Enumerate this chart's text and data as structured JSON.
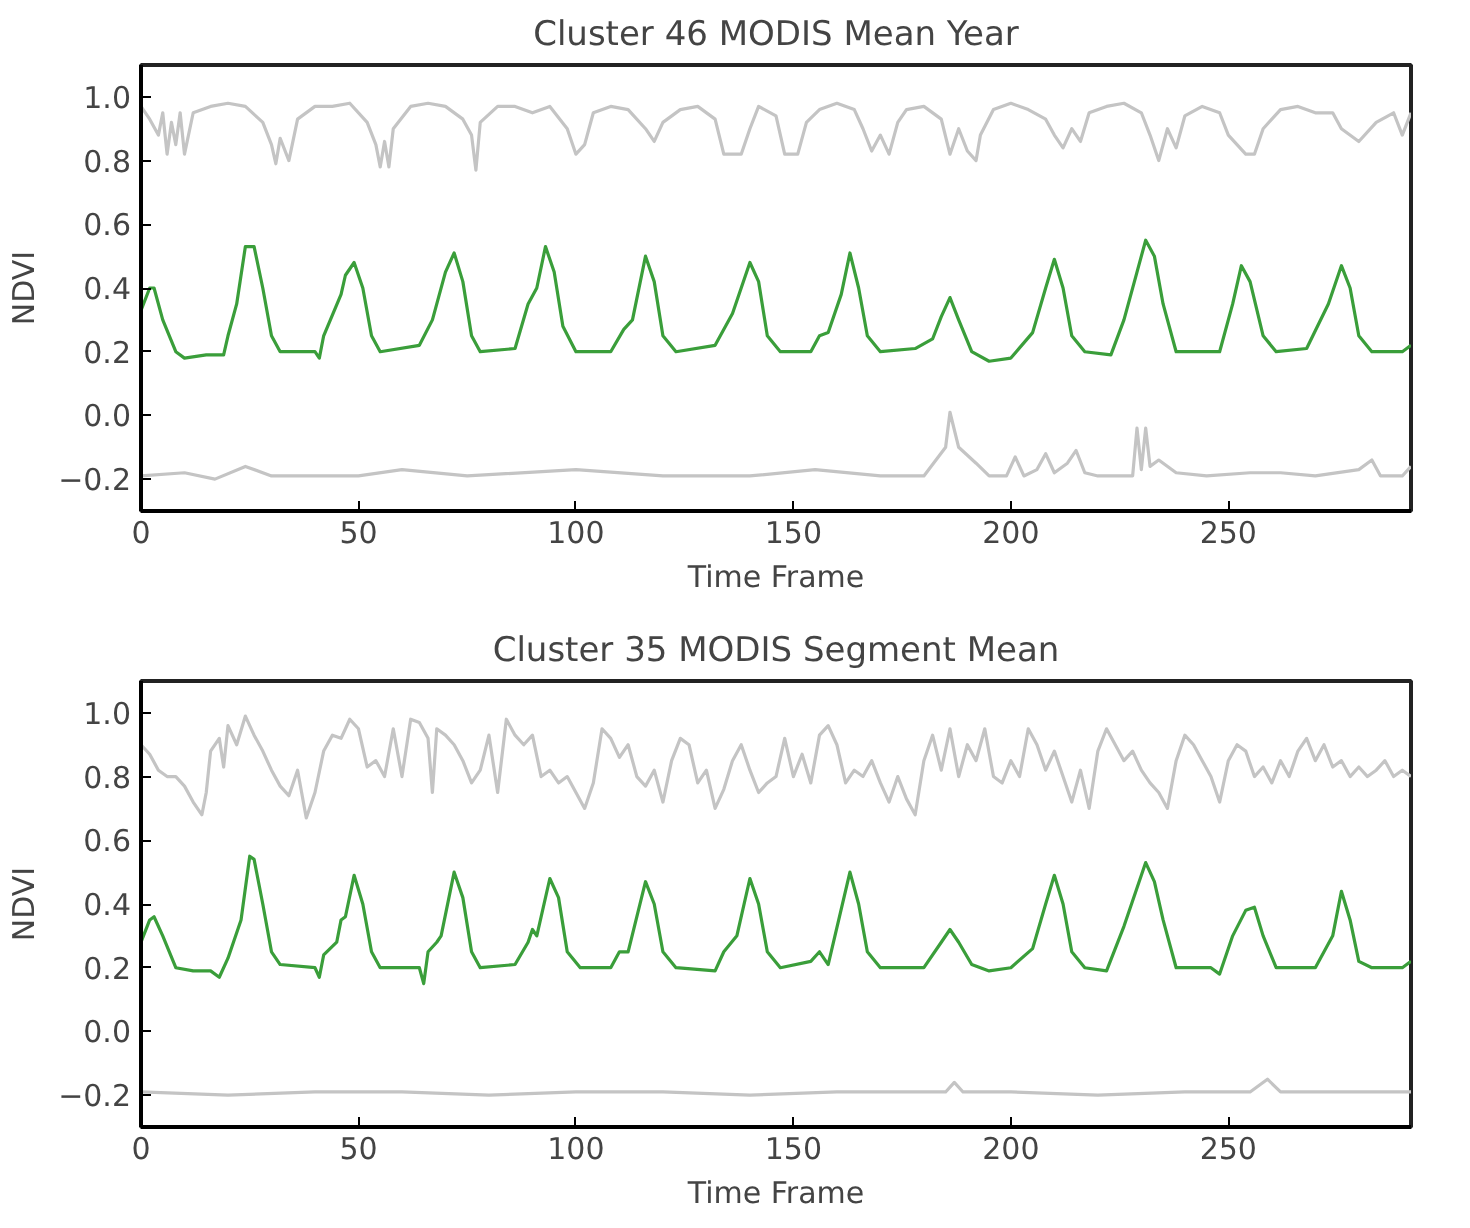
{
  "chart_data": [
    {
      "type": "line",
      "title": "Cluster 46 MODIS Mean Year",
      "xlabel": "Time Frame",
      "ylabel": "NDVI",
      "xlim": [
        0,
        292
      ],
      "ylim": [
        -0.3,
        1.1
      ],
      "xticks": [
        0,
        50,
        100,
        150,
        200,
        250
      ],
      "yticks": [
        {
          "value": -0.2,
          "label": "−0.2"
        },
        {
          "value": 0,
          "label": "0.0"
        },
        0.2,
        0.4,
        0.6,
        0.8,
        {
          "value": 1,
          "label": "1.0"
        }
      ],
      "grid": false,
      "line_style": "solid",
      "series": [
        {
          "color": "#c4c4c4",
          "x": [
            0,
            2,
            4,
            5,
            6,
            7,
            8,
            9,
            10,
            12,
            16,
            20,
            24,
            28,
            30,
            31,
            32,
            34,
            36,
            40,
            44,
            48,
            52,
            54,
            55,
            56,
            57,
            58,
            62,
            66,
            70,
            74,
            76,
            77,
            78,
            82,
            86,
            90,
            94,
            98,
            100,
            102,
            104,
            108,
            112,
            116,
            118,
            120,
            124,
            128,
            132,
            134,
            138,
            140,
            142,
            146,
            148,
            151,
            153,
            156,
            160,
            164,
            166,
            168,
            170,
            172,
            174,
            176,
            180,
            184,
            186,
            188,
            190,
            192,
            193,
            196,
            200,
            204,
            208,
            210,
            212,
            214,
            216,
            218,
            222,
            226,
            230,
            232,
            234,
            236,
            238,
            240,
            244,
            248,
            250,
            252,
            254,
            256,
            258,
            262,
            266,
            270,
            274,
            276,
            280,
            284,
            288,
            290,
            292
          ],
          "values": [
            0.97,
            0.93,
            0.88,
            0.95,
            0.82,
            0.92,
            0.85,
            0.95,
            0.82,
            0.95,
            0.97,
            0.98,
            0.97,
            0.92,
            0.85,
            0.79,
            0.87,
            0.8,
            0.93,
            0.97,
            0.97,
            0.98,
            0.92,
            0.85,
            0.78,
            0.86,
            0.78,
            0.9,
            0.97,
            0.98,
            0.97,
            0.93,
            0.88,
            0.77,
            0.92,
            0.97,
            0.97,
            0.95,
            0.97,
            0.9,
            0.82,
            0.85,
            0.95,
            0.97,
            0.96,
            0.9,
            0.86,
            0.92,
            0.96,
            0.97,
            0.93,
            0.82,
            0.82,
            0.9,
            0.97,
            0.94,
            0.82,
            0.82,
            0.92,
            0.96,
            0.98,
            0.96,
            0.9,
            0.83,
            0.88,
            0.82,
            0.92,
            0.96,
            0.97,
            0.93,
            0.82,
            0.9,
            0.83,
            0.8,
            0.88,
            0.96,
            0.98,
            0.96,
            0.93,
            0.88,
            0.84,
            0.9,
            0.86,
            0.95,
            0.97,
            0.98,
            0.95,
            0.88,
            0.8,
            0.9,
            0.84,
            0.94,
            0.97,
            0.95,
            0.88,
            0.85,
            0.82,
            0.82,
            0.9,
            0.96,
            0.97,
            0.95,
            0.95,
            0.9,
            0.86,
            0.92,
            0.95,
            0.88,
            0.95
          ]
        },
        {
          "color": "#3a9e3a",
          "x": [
            0,
            2,
            3,
            5,
            8,
            10,
            15,
            19,
            20,
            22,
            24,
            26,
            28,
            30,
            32,
            40,
            41,
            42,
            46,
            47,
            49,
            51,
            53,
            55,
            64,
            67,
            70,
            72,
            74,
            76,
            78,
            86,
            89,
            91,
            93,
            95,
            97,
            100,
            108,
            111,
            113,
            116,
            118,
            120,
            123,
            132,
            136,
            140,
            142,
            144,
            147,
            154,
            156,
            158,
            161,
            163,
            165,
            167,
            170,
            178,
            182,
            184,
            186,
            188,
            191,
            195,
            200,
            205,
            208,
            210,
            212,
            214,
            217,
            223,
            226,
            229,
            231,
            233,
            235,
            238,
            248,
            251,
            253,
            255,
            258,
            261,
            268,
            273,
            276,
            278,
            280,
            283,
            290,
            292
          ],
          "values": [
            0.33,
            0.4,
            0.4,
            0.3,
            0.2,
            0.18,
            0.19,
            0.19,
            0.25,
            0.35,
            0.53,
            0.53,
            0.4,
            0.25,
            0.2,
            0.2,
            0.18,
            0.25,
            0.38,
            0.44,
            0.48,
            0.4,
            0.25,
            0.2,
            0.22,
            0.3,
            0.45,
            0.51,
            0.42,
            0.25,
            0.2,
            0.21,
            0.35,
            0.4,
            0.53,
            0.45,
            0.28,
            0.2,
            0.2,
            0.27,
            0.3,
            0.5,
            0.42,
            0.25,
            0.2,
            0.22,
            0.32,
            0.48,
            0.42,
            0.25,
            0.2,
            0.2,
            0.25,
            0.26,
            0.38,
            0.51,
            0.4,
            0.25,
            0.2,
            0.21,
            0.24,
            0.31,
            0.37,
            0.3,
            0.2,
            0.17,
            0.18,
            0.26,
            0.4,
            0.49,
            0.4,
            0.25,
            0.2,
            0.19,
            0.3,
            0.45,
            0.55,
            0.5,
            0.35,
            0.2,
            0.2,
            0.35,
            0.47,
            0.42,
            0.25,
            0.2,
            0.21,
            0.35,
            0.47,
            0.4,
            0.25,
            0.2,
            0.2,
            0.22
          ]
        },
        {
          "color": "#c4c4c4",
          "x": [
            0,
            10,
            17,
            24,
            30,
            50,
            60,
            75,
            100,
            120,
            140,
            155,
            170,
            180,
            185,
            186,
            188,
            192,
            195,
            199,
            201,
            203,
            206,
            208,
            210,
            213,
            215,
            217,
            220,
            228,
            229,
            230,
            231,
            232,
            234,
            238,
            245,
            255,
            262,
            270,
            280,
            283,
            285,
            290,
            292
          ],
          "values": [
            -0.19,
            -0.18,
            -0.2,
            -0.16,
            -0.19,
            -0.19,
            -0.17,
            -0.19,
            -0.17,
            -0.19,
            -0.19,
            -0.17,
            -0.19,
            -0.19,
            -0.1,
            0.01,
            -0.1,
            -0.15,
            -0.19,
            -0.19,
            -0.13,
            -0.19,
            -0.17,
            -0.12,
            -0.18,
            -0.15,
            -0.11,
            -0.18,
            -0.19,
            -0.19,
            -0.04,
            -0.17,
            -0.04,
            -0.16,
            -0.14,
            -0.18,
            -0.19,
            -0.18,
            -0.18,
            -0.19,
            -0.17,
            -0.14,
            -0.19,
            -0.19,
            -0.16
          ]
        }
      ]
    },
    {
      "type": "line",
      "title": "Cluster 35 MODIS Segment Mean",
      "xlabel": "Time Frame",
      "ylabel": "NDVI",
      "xlim": [
        0,
        292
      ],
      "ylim": [
        -0.3,
        1.1
      ],
      "xticks": [
        0,
        50,
        100,
        150,
        200,
        250
      ],
      "yticks": [
        {
          "value": -0.2,
          "label": "−0.2"
        },
        {
          "value": 0,
          "label": "0.0"
        },
        0.2,
        0.4,
        0.6,
        0.8,
        {
          "value": 1,
          "label": "1.0"
        }
      ],
      "grid": false,
      "line_style": "solid",
      "series": [
        {
          "color": "#c4c4c4",
          "x": [
            0,
            2,
            4,
            6,
            8,
            10,
            12,
            14,
            15,
            16,
            18,
            19,
            20,
            22,
            24,
            26,
            28,
            30,
            32,
            34,
            36,
            38,
            40,
            42,
            44,
            46,
            48,
            50,
            52,
            54,
            56,
            58,
            60,
            62,
            64,
            66,
            67,
            68,
            70,
            72,
            74,
            76,
            78,
            80,
            82,
            84,
            86,
            88,
            90,
            92,
            94,
            96,
            98,
            100,
            102,
            104,
            106,
            108,
            110,
            112,
            114,
            116,
            118,
            120,
            122,
            124,
            126,
            128,
            130,
            132,
            134,
            136,
            138,
            140,
            142,
            144,
            146,
            148,
            150,
            152,
            154,
            156,
            158,
            160,
            162,
            164,
            166,
            168,
            170,
            172,
            174,
            176,
            178,
            180,
            182,
            184,
            186,
            188,
            190,
            192,
            194,
            196,
            198,
            200,
            202,
            204,
            206,
            208,
            210,
            212,
            214,
            216,
            218,
            220,
            222,
            224,
            226,
            228,
            230,
            232,
            234,
            236,
            238,
            240,
            242,
            244,
            246,
            248,
            250,
            252,
            254,
            256,
            258,
            260,
            262,
            264,
            266,
            268,
            270,
            272,
            274,
            276,
            278,
            280,
            282,
            284,
            286,
            288,
            290,
            292
          ],
          "values": [
            0.9,
            0.87,
            0.82,
            0.8,
            0.8,
            0.77,
            0.72,
            0.68,
            0.75,
            0.88,
            0.92,
            0.83,
            0.96,
            0.9,
            0.99,
            0.93,
            0.88,
            0.82,
            0.77,
            0.74,
            0.82,
            0.67,
            0.75,
            0.88,
            0.93,
            0.92,
            0.98,
            0.95,
            0.83,
            0.85,
            0.8,
            0.95,
            0.8,
            0.98,
            0.97,
            0.92,
            0.75,
            0.95,
            0.93,
            0.9,
            0.85,
            0.78,
            0.82,
            0.93,
            0.75,
            0.98,
            0.93,
            0.9,
            0.93,
            0.8,
            0.82,
            0.78,
            0.8,
            0.75,
            0.7,
            0.78,
            0.95,
            0.92,
            0.86,
            0.9,
            0.8,
            0.77,
            0.82,
            0.72,
            0.85,
            0.92,
            0.9,
            0.78,
            0.82,
            0.7,
            0.76,
            0.85,
            0.9,
            0.82,
            0.75,
            0.78,
            0.8,
            0.92,
            0.8,
            0.87,
            0.78,
            0.93,
            0.96,
            0.9,
            0.78,
            0.82,
            0.8,
            0.85,
            0.78,
            0.72,
            0.8,
            0.73,
            0.68,
            0.85,
            0.93,
            0.82,
            0.95,
            0.8,
            0.9,
            0.85,
            0.95,
            0.8,
            0.78,
            0.85,
            0.8,
            0.95,
            0.9,
            0.82,
            0.88,
            0.8,
            0.72,
            0.82,
            0.7,
            0.88,
            0.95,
            0.9,
            0.85,
            0.88,
            0.82,
            0.78,
            0.75,
            0.7,
            0.85,
            0.93,
            0.9,
            0.85,
            0.8,
            0.72,
            0.85,
            0.9,
            0.88,
            0.8,
            0.83,
            0.78,
            0.85,
            0.8,
            0.88,
            0.92,
            0.85,
            0.9,
            0.83,
            0.85,
            0.8,
            0.83,
            0.8,
            0.82,
            0.85,
            0.8,
            0.82,
            0.8
          ]
        },
        {
          "color": "#3a9e3a",
          "x": [
            0,
            2,
            3,
            5,
            8,
            12,
            16,
            18,
            20,
            23,
            25,
            26,
            28,
            30,
            32,
            40,
            41,
            42,
            45,
            46,
            47,
            49,
            51,
            53,
            55,
            64,
            65,
            66,
            68,
            69,
            72,
            74,
            76,
            78,
            86,
            89,
            90,
            91,
            94,
            96,
            98,
            101,
            108,
            110,
            112,
            116,
            118,
            120,
            123,
            132,
            134,
            137,
            140,
            142,
            144,
            147,
            154,
            156,
            158,
            163,
            165,
            167,
            170,
            180,
            184,
            186,
            188,
            191,
            195,
            200,
            205,
            208,
            210,
            212,
            214,
            217,
            222,
            226,
            229,
            231,
            233,
            235,
            238,
            246,
            248,
            251,
            254,
            256,
            258,
            261,
            270,
            274,
            276,
            278,
            280,
            283,
            290,
            292
          ],
          "values": [
            0.28,
            0.35,
            0.36,
            0.3,
            0.2,
            0.19,
            0.19,
            0.17,
            0.23,
            0.35,
            0.55,
            0.54,
            0.4,
            0.25,
            0.21,
            0.2,
            0.17,
            0.24,
            0.28,
            0.35,
            0.36,
            0.49,
            0.4,
            0.25,
            0.2,
            0.2,
            0.15,
            0.25,
            0.28,
            0.3,
            0.5,
            0.42,
            0.25,
            0.2,
            0.21,
            0.28,
            0.32,
            0.3,
            0.48,
            0.42,
            0.25,
            0.2,
            0.2,
            0.25,
            0.25,
            0.47,
            0.4,
            0.25,
            0.2,
            0.19,
            0.25,
            0.3,
            0.48,
            0.4,
            0.25,
            0.2,
            0.22,
            0.25,
            0.21,
            0.5,
            0.4,
            0.25,
            0.2,
            0.2,
            0.28,
            0.32,
            0.28,
            0.21,
            0.19,
            0.2,
            0.26,
            0.4,
            0.49,
            0.4,
            0.25,
            0.2,
            0.19,
            0.33,
            0.45,
            0.53,
            0.47,
            0.35,
            0.2,
            0.2,
            0.18,
            0.3,
            0.38,
            0.39,
            0.3,
            0.2,
            0.2,
            0.3,
            0.44,
            0.35,
            0.22,
            0.2,
            0.2,
            0.22
          ]
        },
        {
          "color": "#c4c4c4",
          "x": [
            0,
            20,
            40,
            60,
            80,
            100,
            120,
            140,
            160,
            180,
            185,
            187,
            189,
            200,
            220,
            240,
            255,
            259,
            262,
            280,
            292
          ],
          "values": [
            -0.19,
            -0.2,
            -0.19,
            -0.19,
            -0.2,
            -0.19,
            -0.19,
            -0.2,
            -0.19,
            -0.19,
            -0.19,
            -0.16,
            -0.19,
            -0.19,
            -0.2,
            -0.19,
            -0.19,
            -0.15,
            -0.19,
            -0.19,
            -0.19
          ]
        }
      ]
    }
  ]
}
